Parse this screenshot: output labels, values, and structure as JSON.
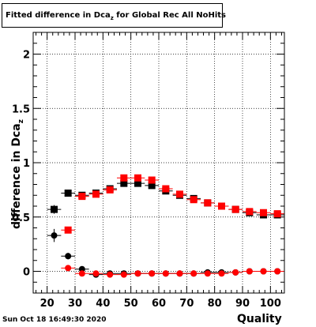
{
  "title": {
    "prefix": "Fitted difference in Dca",
    "sub": "z",
    "suffix": " for Global Rec All NoHits"
  },
  "footer": {
    "timestamp": "Sun Oct 18 16:49:30 2020"
  },
  "chart_data": {
    "type": "scatter",
    "xlabel": "Quality",
    "ylabel_text": "difference in Dca",
    "ylabel_sub": "z",
    "xlim": [
      15,
      105
    ],
    "ylim": [
      -0.2,
      2.2
    ],
    "grid": true,
    "x_ticks": [
      20,
      30,
      40,
      50,
      60,
      70,
      80,
      90,
      100
    ],
    "y_ticks": [
      0,
      0.5,
      1,
      1.5,
      2
    ],
    "y_tick_labels": [
      "0",
      "0.5",
      "1",
      "1.5",
      "2"
    ],
    "series": [
      {
        "marker": "square",
        "color": "#000000",
        "x": [
          22.5,
          27.5,
          32.5,
          37.5,
          42.5,
          47.5,
          52.5,
          57.5,
          62.5,
          67.5,
          72.5,
          77.5,
          82.5,
          87.5,
          92.5,
          97.5,
          102.5
        ],
        "y": [
          0.57,
          0.72,
          0.7,
          0.72,
          0.76,
          0.81,
          0.81,
          0.79,
          0.74,
          0.7,
          0.67,
          0.63,
          0.6,
          0.57,
          0.54,
          0.52,
          0.52
        ],
        "err": [
          0.04,
          0.03,
          0.03,
          0.03,
          0.02,
          0.02,
          0.02,
          0.02,
          0.02,
          0.02,
          0.02,
          0.02,
          0.02,
          0.02,
          0.02,
          0.02,
          0.02
        ]
      },
      {
        "marker": "square",
        "color": "#ff0000",
        "x": [
          27.5,
          32.5,
          37.5,
          42.5,
          47.5,
          52.5,
          57.5,
          62.5,
          67.5,
          72.5,
          77.5,
          82.5,
          87.5,
          92.5,
          97.5,
          102.5
        ],
        "y": [
          0.38,
          0.69,
          0.71,
          0.75,
          0.86,
          0.86,
          0.84,
          0.76,
          0.71,
          0.66,
          0.63,
          0.6,
          0.57,
          0.55,
          0.54,
          0.53
        ],
        "err": [
          0.03,
          0.03,
          0.03,
          0.02,
          0.02,
          0.02,
          0.02,
          0.02,
          0.02,
          0.02,
          0.02,
          0.02,
          0.02,
          0.02,
          0.02,
          0.02
        ]
      },
      {
        "marker": "circle",
        "color": "#000000",
        "x": [
          22.5,
          27.5,
          32.5,
          37.5,
          42.5,
          47.5,
          52.5,
          57.5,
          62.5,
          67.5,
          72.5,
          77.5,
          82.5,
          87.5,
          92.5,
          97.5,
          102.5
        ],
        "y": [
          0.33,
          0.14,
          0.02,
          -0.03,
          -0.02,
          -0.02,
          -0.02,
          -0.02,
          -0.02,
          -0.02,
          -0.02,
          -0.01,
          -0.01,
          -0.01,
          0.0,
          0.0,
          0.0
        ],
        "err": [
          0.06,
          0.03,
          0.02,
          0.02,
          0.02,
          0.02,
          0.02,
          0.02,
          0.02,
          0.02,
          0.02,
          0.02,
          0.02,
          0.02,
          0.02,
          0.02,
          0.02
        ]
      },
      {
        "marker": "circle",
        "color": "#ff0000",
        "x": [
          27.5,
          32.5,
          37.5,
          42.5,
          47.5,
          52.5,
          57.5,
          62.5,
          67.5,
          72.5,
          77.5,
          82.5,
          87.5,
          92.5,
          97.5,
          102.5
        ],
        "y": [
          0.03,
          -0.02,
          -0.02,
          -0.03,
          -0.03,
          -0.02,
          -0.02,
          -0.02,
          -0.02,
          -0.02,
          -0.02,
          -0.02,
          -0.01,
          0.0,
          0.0,
          0.0
        ],
        "err": [
          0.02,
          0.02,
          0.02,
          0.02,
          0.02,
          0.02,
          0.02,
          0.02,
          0.02,
          0.02,
          0.02,
          0.02,
          0.02,
          0.02,
          0.02,
          0.02
        ]
      }
    ]
  }
}
